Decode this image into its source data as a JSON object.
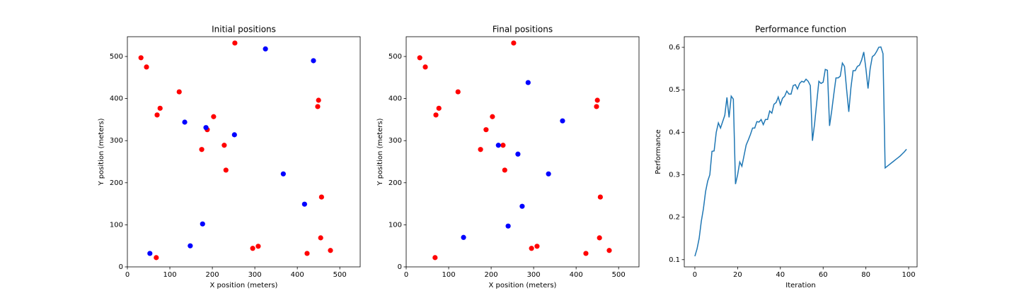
{
  "chart_data": [
    {
      "type": "scatter",
      "title": "Initial positions",
      "xlabel": "X position (meters)",
      "ylabel": "Y position (meters)",
      "xlim": [
        0,
        548
      ],
      "ylim": [
        0,
        547
      ],
      "xticks": [
        0,
        100,
        200,
        300,
        400,
        500
      ],
      "yticks": [
        0,
        100,
        200,
        300,
        400,
        500
      ],
      "series": [
        {
          "color": "red",
          "x": [
            32,
            45,
            122,
            77,
            70,
            203,
            188,
            175,
            228,
            232,
            253,
            450,
            448,
            457,
            455,
            295,
            308,
            423,
            478,
            68
          ],
          "y": [
            497,
            475,
            416,
            377,
            361,
            357,
            326,
            279,
            289,
            230,
            532,
            396,
            381,
            166,
            69,
            44,
            49,
            32,
            39,
            22
          ]
        },
        {
          "color": "blue",
          "x": [
            325,
            438,
            135,
            185,
            252,
            367,
            417,
            177,
            148,
            53
          ],
          "y": [
            518,
            490,
            344,
            331,
            314,
            221,
            149,
            102,
            50,
            32
          ]
        }
      ]
    },
    {
      "type": "scatter",
      "title": "Final positions",
      "xlabel": "X position (meters)",
      "ylabel": "Y position (meters)",
      "xlim": [
        0,
        548
      ],
      "ylim": [
        0,
        547
      ],
      "xticks": [
        0,
        100,
        200,
        300,
        400,
        500
      ],
      "yticks": [
        0,
        100,
        200,
        300,
        400,
        500
      ],
      "series": [
        {
          "color": "red",
          "x": [
            32,
            45,
            122,
            77,
            70,
            203,
            188,
            175,
            228,
            232,
            253,
            450,
            448,
            457,
            455,
            295,
            308,
            423,
            478,
            68
          ],
          "y": [
            497,
            475,
            416,
            377,
            361,
            357,
            326,
            279,
            289,
            230,
            532,
            396,
            381,
            166,
            69,
            44,
            49,
            32,
            39,
            22
          ]
        },
        {
          "color": "blue",
          "x": [
            287,
            368,
            217,
            263,
            335,
            273,
            240,
            135
          ],
          "y": [
            438,
            347,
            289,
            268,
            221,
            144,
            97,
            70
          ]
        }
      ]
    },
    {
      "type": "line",
      "title": "Performance function",
      "xlabel": "Iteration",
      "ylabel": "Performance",
      "color": "#1f77b4",
      "xlim": [
        -4.95,
        103.95
      ],
      "ylim": [
        0.083,
        0.625
      ],
      "xticks": [
        0,
        20,
        40,
        60,
        80,
        100
      ],
      "yticks": [
        0.1,
        0.2,
        0.3,
        0.4,
        0.5,
        0.6
      ],
      "x": [
        0,
        1,
        2,
        3,
        4,
        5,
        6,
        7,
        8,
        9,
        10,
        11,
        12,
        13,
        14,
        15,
        16,
        17,
        18,
        19,
        20,
        21,
        22,
        23,
        24,
        25,
        26,
        27,
        28,
        29,
        30,
        31,
        32,
        33,
        34,
        35,
        36,
        37,
        38,
        39,
        40,
        41,
        42,
        43,
        44,
        45,
        46,
        47,
        48,
        49,
        50,
        51,
        52,
        53,
        54,
        55,
        56,
        57,
        58,
        59,
        60,
        61,
        62,
        63,
        64,
        65,
        66,
        67,
        68,
        69,
        70,
        71,
        72,
        73,
        74,
        75,
        76,
        77,
        78,
        79,
        80,
        81,
        82,
        83,
        84,
        85,
        86,
        87,
        88,
        89,
        90,
        91,
        92,
        93,
        94,
        95,
        96,
        97,
        98,
        99
      ],
      "values": [
        0.108,
        0.125,
        0.15,
        0.19,
        0.22,
        0.26,
        0.285,
        0.3,
        0.355,
        0.356,
        0.4,
        0.422,
        0.41,
        0.425,
        0.44,
        0.482,
        0.435,
        0.485,
        0.478,
        0.278,
        0.3,
        0.33,
        0.32,
        0.345,
        0.37,
        0.382,
        0.395,
        0.41,
        0.41,
        0.425,
        0.424,
        0.43,
        0.418,
        0.43,
        0.43,
        0.45,
        0.445,
        0.466,
        0.47,
        0.483,
        0.465,
        0.48,
        0.485,
        0.497,
        0.49,
        0.49,
        0.51,
        0.512,
        0.502,
        0.515,
        0.52,
        0.518,
        0.525,
        0.52,
        0.51,
        0.38,
        0.42,
        0.47,
        0.52,
        0.515,
        0.518,
        0.548,
        0.546,
        0.415,
        0.45,
        0.49,
        0.528,
        0.528,
        0.532,
        0.563,
        0.555,
        0.5,
        0.448,
        0.505,
        0.545,
        0.545,
        0.555,
        0.558,
        0.57,
        0.589,
        0.55,
        0.503,
        0.55,
        0.578,
        0.582,
        0.59,
        0.6,
        0.601,
        0.585,
        0.316,
        0.32,
        0.324,
        0.328,
        0.332,
        0.336,
        0.34,
        0.344,
        0.349,
        0.354,
        0.36
      ]
    }
  ]
}
